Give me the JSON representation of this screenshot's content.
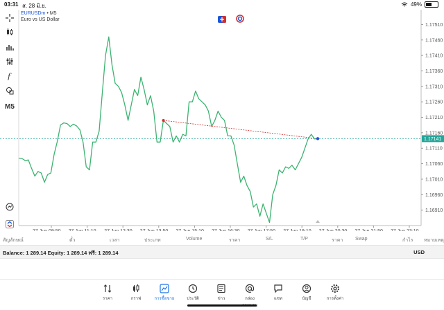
{
  "status": {
    "time": "03:31",
    "date": "ส. 28 มิ.ย.",
    "battery": "49%",
    "battery_level": 0.49
  },
  "symbol": {
    "name": "EURUSDm",
    "timeframe": "M5",
    "description": "Euro vs US Dollar"
  },
  "toolbar": {
    "timeframe": "M5"
  },
  "chart_data": {
    "type": "line",
    "series": [
      {
        "values": [
          1.17078,
          1.17077,
          1.1707,
          1.17072,
          1.17045,
          1.1702,
          1.17035,
          1.1703,
          1.17,
          1.17025,
          1.1703,
          1.1709,
          1.17132,
          1.17185,
          1.17192,
          1.1719,
          1.1718,
          1.17188,
          1.17182,
          1.1717,
          1.1713,
          1.1705,
          1.1704,
          1.1713,
          1.1713,
          1.17165,
          1.1729,
          1.1741,
          1.1747,
          1.1738,
          1.1732,
          1.1731,
          1.1729,
          1.1725,
          1.172,
          1.1725,
          1.173,
          1.1728,
          1.1734,
          1.173,
          1.1725,
          1.1728,
          1.1723,
          1.1713,
          1.1713,
          1.172,
          1.1719,
          1.1718,
          1.1713,
          1.1715,
          1.1713,
          1.17155,
          1.1715,
          1.1726,
          1.1726,
          1.17295,
          1.1727,
          1.1726,
          1.1725,
          1.1723,
          1.1718,
          1.172,
          1.1723,
          1.1721,
          1.172,
          1.1715,
          1.1715,
          1.1712,
          1.1706,
          1.17,
          1.1702,
          1.1699,
          1.1697,
          1.1692,
          1.1693,
          1.1689,
          1.1693,
          1.169,
          1.1687,
          1.1696,
          1.1699,
          1.1704,
          1.1703,
          1.1705,
          1.17045,
          1.17055,
          1.1704,
          1.1706,
          1.1708,
          1.1711,
          1.1714,
          1.17155,
          1.1714,
          1.17141
        ]
      }
    ],
    "y_ticks": [
      "1.17510",
      "1.17460",
      "1.17410",
      "1.17360",
      "1.17310",
      "1.17260",
      "1.17210",
      "1.17160",
      "1.17110",
      "1.17060",
      "1.17010",
      "1.16960",
      "1.16910"
    ],
    "x_ticks": [
      "27 Jun 09:50",
      "27 Jun 11:10",
      "27 Jun 12:30",
      "27 Jun 13:50",
      "27 Jun 15:10",
      "27 Jun 16:30",
      "27 Jun 17:50",
      "27 Jun 19:10",
      "27 Jun 20:30",
      "27 Jun 21:50",
      "27 Jun 23:10"
    ],
    "ylim": [
      1.1686,
      1.1754
    ],
    "current_price": "1.17141",
    "line_color": "#3cb371",
    "bid_line_color": "#26a69a"
  },
  "trade_table": {
    "headers": [
      "สัญลักษณ์",
      "ตั๋ว",
      "เวลา",
      "ประเภท",
      "Volume",
      "ราคา",
      "S/L",
      "T/P",
      "ราคา",
      "Swap",
      "กำไร",
      "หมายเหตุ"
    ]
  },
  "account": {
    "summary": "Balance: 1 289.14 Equity: 1 289.14 ฟรี: 1 289.14",
    "currency": "USD"
  },
  "tabs": [
    {
      "label": "ราคา",
      "icon": "quotes-icon"
    },
    {
      "label": "กราฟ",
      "icon": "chart-icon"
    },
    {
      "label": "การซื้อขาย",
      "icon": "trade-icon",
      "active": true
    },
    {
      "label": "ประวัติ",
      "icon": "history-icon"
    },
    {
      "label": "ข่าว",
      "icon": "news-icon"
    },
    {
      "label": "กล่องจดหมาย",
      "icon": "mailbox-icon"
    },
    {
      "label": "แชท",
      "icon": "chat-icon"
    },
    {
      "label": "บัญชี",
      "icon": "account-icon"
    },
    {
      "label": "การตั้งค่า",
      "icon": "settings-icon"
    }
  ]
}
